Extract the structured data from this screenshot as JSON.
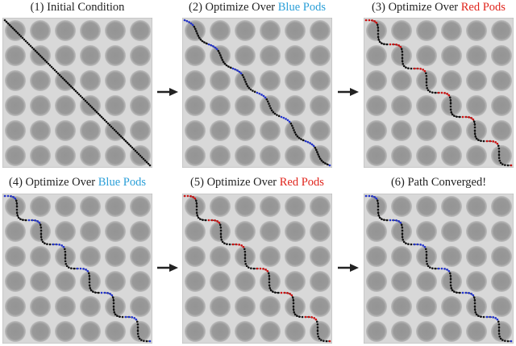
{
  "colors": {
    "blue": "#2a9fd8",
    "red": "#e0241b",
    "pod": "#9a9a9a",
    "background": "#d8d8d8",
    "path": "#111111",
    "blue_pod_points": "#2233cc",
    "red_pod_points": "#cc1111"
  },
  "panels": [
    {
      "id": 1,
      "prefix": "(1) Initial Condition",
      "highlight": "",
      "highlight_color": "",
      "path_style": "straight",
      "pod_color": ""
    },
    {
      "id": 2,
      "prefix": "(2) Optimize Over ",
      "highlight": "Blue Pods",
      "highlight_color": "blue",
      "path_style": "partial",
      "pod_color": "blue"
    },
    {
      "id": 3,
      "prefix": "(3) Optimize Over ",
      "highlight": "Red Pods",
      "highlight_color": "red",
      "path_style": "wavy",
      "pod_color": "red"
    },
    {
      "id": 4,
      "prefix": "(4) Optimize Over ",
      "highlight": "Blue Pods",
      "highlight_color": "blue",
      "path_style": "wavy",
      "pod_color": "blue"
    },
    {
      "id": 5,
      "prefix": "(5) Optimize Over ",
      "highlight": "Red Pods",
      "highlight_color": "red",
      "path_style": "wavy",
      "pod_color": "red"
    },
    {
      "id": 6,
      "prefix": "(6) Path Converged!",
      "highlight": "",
      "highlight_color": "",
      "path_style": "wavy",
      "pod_color": "blue"
    }
  ],
  "grid": {
    "rows": 6,
    "cols": 6
  }
}
